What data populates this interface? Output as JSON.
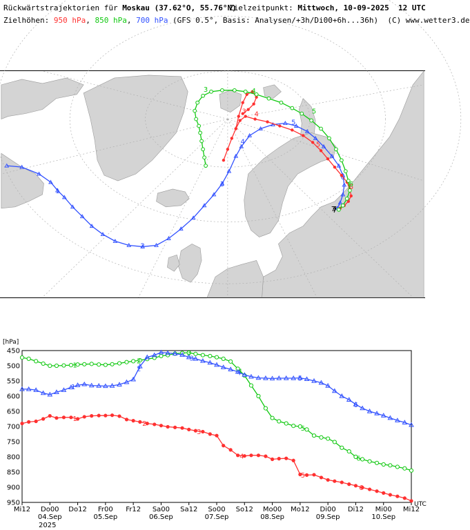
{
  "header": {
    "line1_prefix": "Rückwärtstrajektorien für ",
    "location": "Moskau",
    "coords": "(37.62°O, 55.76°N)",
    "target_label": "Zielzeitpunkt: ",
    "target_time": "Mittwoch, 10-09-2025  12 UTC",
    "line2_prefix": "Zielhöhen: ",
    "h950": "950 hPa",
    "h850": "850 hPa",
    "h700": "700 hPa",
    "line2_suffix": " (GFS 0.5°, Basis: Analysen/+3h/Di00+6h...36h)  (C) www.wetter3.de"
  },
  "colors": {
    "red": "#ff3030",
    "green": "#10c810",
    "blue": "#3050ff",
    "land": "#d4d4d4",
    "sea": "#ffffff"
  },
  "map": {
    "labels_950": [
      "3",
      "4",
      "5",
      "6",
      "7"
    ],
    "labels_850": [
      "3",
      "4",
      "5",
      "6",
      "7"
    ],
    "labels_700": [
      "1",
      "2",
      "3",
      "4",
      "5",
      "6",
      "7"
    ]
  },
  "chart_data": {
    "type": "line",
    "ylabel": "[hPa]",
    "ylim": [
      450,
      950
    ],
    "y_inverted": true,
    "yticks": [
      450,
      500,
      550,
      600,
      650,
      700,
      750,
      800,
      850,
      900,
      950
    ],
    "x_range": [
      0,
      7
    ],
    "x_unit_note": "days",
    "x_tick_labels": [
      {
        "t": 0.0,
        "top": "Mi12",
        "bottom": ""
      },
      {
        "t": 0.5,
        "top": "Do00",
        "bottom": "04.Sep"
      },
      {
        "t": 1.0,
        "top": "Do12",
        "bottom": ""
      },
      {
        "t": 1.5,
        "top": "Fr00",
        "bottom": "05.Sep"
      },
      {
        "t": 2.0,
        "top": "Fr12",
        "bottom": ""
      },
      {
        "t": 2.5,
        "top": "Sa00",
        "bottom": "06.Sep"
      },
      {
        "t": 3.0,
        "top": "Sa12",
        "bottom": ""
      },
      {
        "t": 3.5,
        "top": "So00",
        "bottom": "07.Sep"
      },
      {
        "t": 4.0,
        "top": "So12",
        "bottom": ""
      },
      {
        "t": 4.5,
        "top": "Mo00",
        "bottom": "08.Sep"
      },
      {
        "t": 5.0,
        "top": "Mo12",
        "bottom": ""
      },
      {
        "t": 5.5,
        "top": "Di00",
        "bottom": "09.Sep"
      },
      {
        "t": 6.0,
        "top": "Di12",
        "bottom": ""
      },
      {
        "t": 6.5,
        "top": "Mi00",
        "bottom": "10.Sep"
      },
      {
        "t": 7.0,
        "top": "Mi12",
        "bottom": ""
      }
    ],
    "year_label": "2025",
    "end_label": "UTC",
    "series": [
      {
        "name": "950 hPa",
        "color": "#ff3030",
        "values": [
          [
            0.0,
            690
          ],
          [
            0.12,
            685
          ],
          [
            0.25,
            683
          ],
          [
            0.38,
            675
          ],
          [
            0.5,
            665
          ],
          [
            0.62,
            672
          ],
          [
            0.75,
            670
          ],
          [
            0.88,
            670
          ],
          [
            1.0,
            675
          ],
          [
            1.12,
            668
          ],
          [
            1.25,
            665
          ],
          [
            1.38,
            664
          ],
          [
            1.5,
            664
          ],
          [
            1.62,
            663
          ],
          [
            1.75,
            666
          ],
          [
            1.88,
            677
          ],
          [
            2.0,
            681
          ],
          [
            2.12,
            685
          ],
          [
            2.25,
            690
          ],
          [
            2.38,
            693
          ],
          [
            2.5,
            697
          ],
          [
            2.62,
            701
          ],
          [
            2.75,
            703
          ],
          [
            2.88,
            705
          ],
          [
            3.0,
            710
          ],
          [
            3.12,
            714
          ],
          [
            3.25,
            717
          ],
          [
            3.38,
            725
          ],
          [
            3.5,
            730
          ],
          [
            3.62,
            763
          ],
          [
            3.75,
            777
          ],
          [
            3.88,
            795
          ],
          [
            4.0,
            797
          ],
          [
            4.12,
            795
          ],
          [
            4.25,
            795
          ],
          [
            4.38,
            798
          ],
          [
            4.5,
            808
          ],
          [
            4.62,
            806
          ],
          [
            4.75,
            805
          ],
          [
            4.88,
            812
          ],
          [
            5.0,
            858
          ],
          [
            5.12,
            860
          ],
          [
            5.25,
            859
          ],
          [
            5.38,
            868
          ],
          [
            5.5,
            876
          ],
          [
            5.62,
            880
          ],
          [
            5.75,
            884
          ],
          [
            5.88,
            890
          ],
          [
            6.0,
            895
          ],
          [
            6.12,
            901
          ],
          [
            6.25,
            907
          ],
          [
            6.38,
            913
          ],
          [
            6.5,
            919
          ],
          [
            6.62,
            925
          ],
          [
            6.75,
            930
          ],
          [
            6.88,
            936
          ],
          [
            7.0,
            945
          ]
        ],
        "markers": [
          {
            "t": 0.95,
            "label": "1"
          },
          {
            "t": 2.2,
            "label": "2"
          },
          {
            "t": 3.18,
            "label": "3"
          },
          {
            "t": 3.95,
            "label": "4"
          },
          {
            "t": 5.05,
            "label": "5"
          },
          {
            "t": 6.1,
            "label": "6"
          }
        ]
      },
      {
        "name": "850 hPa",
        "color": "#10c810",
        "values": [
          [
            0.0,
            473
          ],
          [
            0.12,
            477
          ],
          [
            0.25,
            485
          ],
          [
            0.38,
            493
          ],
          [
            0.5,
            500
          ],
          [
            0.62,
            500
          ],
          [
            0.75,
            499
          ],
          [
            0.88,
            498
          ],
          [
            1.0,
            496
          ],
          [
            1.12,
            495
          ],
          [
            1.25,
            494
          ],
          [
            1.38,
            496
          ],
          [
            1.5,
            497
          ],
          [
            1.62,
            495
          ],
          [
            1.75,
            492
          ],
          [
            1.88,
            488
          ],
          [
            2.0,
            485
          ],
          [
            2.12,
            482
          ],
          [
            2.25,
            478
          ],
          [
            2.38,
            474
          ],
          [
            2.5,
            468
          ],
          [
            2.62,
            465
          ],
          [
            2.75,
            460
          ],
          [
            2.88,
            458
          ],
          [
            3.0,
            457
          ],
          [
            3.12,
            461
          ],
          [
            3.25,
            465
          ],
          [
            3.38,
            468
          ],
          [
            3.5,
            472
          ],
          [
            3.62,
            477
          ],
          [
            3.75,
            486
          ],
          [
            3.88,
            510
          ],
          [
            4.0,
            532
          ],
          [
            4.12,
            565
          ],
          [
            4.25,
            600
          ],
          [
            4.38,
            640
          ],
          [
            4.5,
            672
          ],
          [
            4.62,
            683
          ],
          [
            4.75,
            690
          ],
          [
            4.88,
            698
          ],
          [
            5.0,
            700
          ],
          [
            5.12,
            710
          ],
          [
            5.25,
            730
          ],
          [
            5.38,
            736
          ],
          [
            5.5,
            740
          ],
          [
            5.62,
            751
          ],
          [
            5.75,
            770
          ],
          [
            5.88,
            782
          ],
          [
            6.0,
            800
          ],
          [
            6.12,
            808
          ],
          [
            6.25,
            815
          ],
          [
            6.38,
            820
          ],
          [
            6.5,
            825
          ],
          [
            6.62,
            828
          ],
          [
            6.75,
            833
          ],
          [
            6.88,
            838
          ],
          [
            7.0,
            845
          ]
        ],
        "markers": [
          {
            "t": 0.95,
            "label": "1"
          },
          {
            "t": 2.1,
            "label": "2"
          },
          {
            "t": 3.0,
            "label": "3"
          },
          {
            "t": 3.92,
            "label": "4"
          },
          {
            "t": 5.05,
            "label": "5"
          },
          {
            "t": 6.05,
            "label": "6"
          }
        ]
      },
      {
        "name": "700 hPa",
        "color": "#3050ff",
        "values": [
          [
            0.0,
            577
          ],
          [
            0.12,
            577
          ],
          [
            0.25,
            580
          ],
          [
            0.38,
            590
          ],
          [
            0.5,
            595
          ],
          [
            0.62,
            587
          ],
          [
            0.75,
            580
          ],
          [
            0.88,
            571
          ],
          [
            1.0,
            564
          ],
          [
            1.12,
            561
          ],
          [
            1.25,
            565
          ],
          [
            1.38,
            566
          ],
          [
            1.5,
            567
          ],
          [
            1.62,
            566
          ],
          [
            1.75,
            562
          ],
          [
            1.88,
            554
          ],
          [
            2.0,
            545
          ],
          [
            2.12,
            502
          ],
          [
            2.25,
            472
          ],
          [
            2.38,
            465
          ],
          [
            2.5,
            456
          ],
          [
            2.62,
            458
          ],
          [
            2.75,
            460
          ],
          [
            2.88,
            464
          ],
          [
            3.0,
            472
          ],
          [
            3.12,
            477
          ],
          [
            3.25,
            484
          ],
          [
            3.38,
            490
          ],
          [
            3.5,
            497
          ],
          [
            3.62,
            505
          ],
          [
            3.75,
            512
          ],
          [
            3.88,
            520
          ],
          [
            4.0,
            530
          ],
          [
            4.12,
            536
          ],
          [
            4.25,
            540
          ],
          [
            4.38,
            541
          ],
          [
            4.5,
            542
          ],
          [
            4.62,
            541
          ],
          [
            4.75,
            541
          ],
          [
            4.88,
            541
          ],
          [
            5.0,
            540
          ],
          [
            5.12,
            544
          ],
          [
            5.25,
            550
          ],
          [
            5.38,
            556
          ],
          [
            5.5,
            566
          ],
          [
            5.62,
            583
          ],
          [
            5.75,
            600
          ],
          [
            5.88,
            612
          ],
          [
            6.0,
            627
          ],
          [
            6.12,
            640
          ],
          [
            6.25,
            650
          ],
          [
            6.38,
            657
          ],
          [
            6.5,
            664
          ],
          [
            6.62,
            672
          ],
          [
            6.75,
            680
          ],
          [
            6.88,
            687
          ],
          [
            7.0,
            695
          ]
        ],
        "markers": [
          {
            "t": 0.92,
            "label": "1"
          },
          {
            "t": 2.1,
            "label": "2"
          },
          {
            "t": 3.05,
            "label": "3"
          },
          {
            "t": 3.9,
            "label": "4"
          },
          {
            "t": 5.0,
            "label": "5"
          },
          {
            "t": 6.0,
            "label": "6"
          }
        ]
      }
    ]
  }
}
